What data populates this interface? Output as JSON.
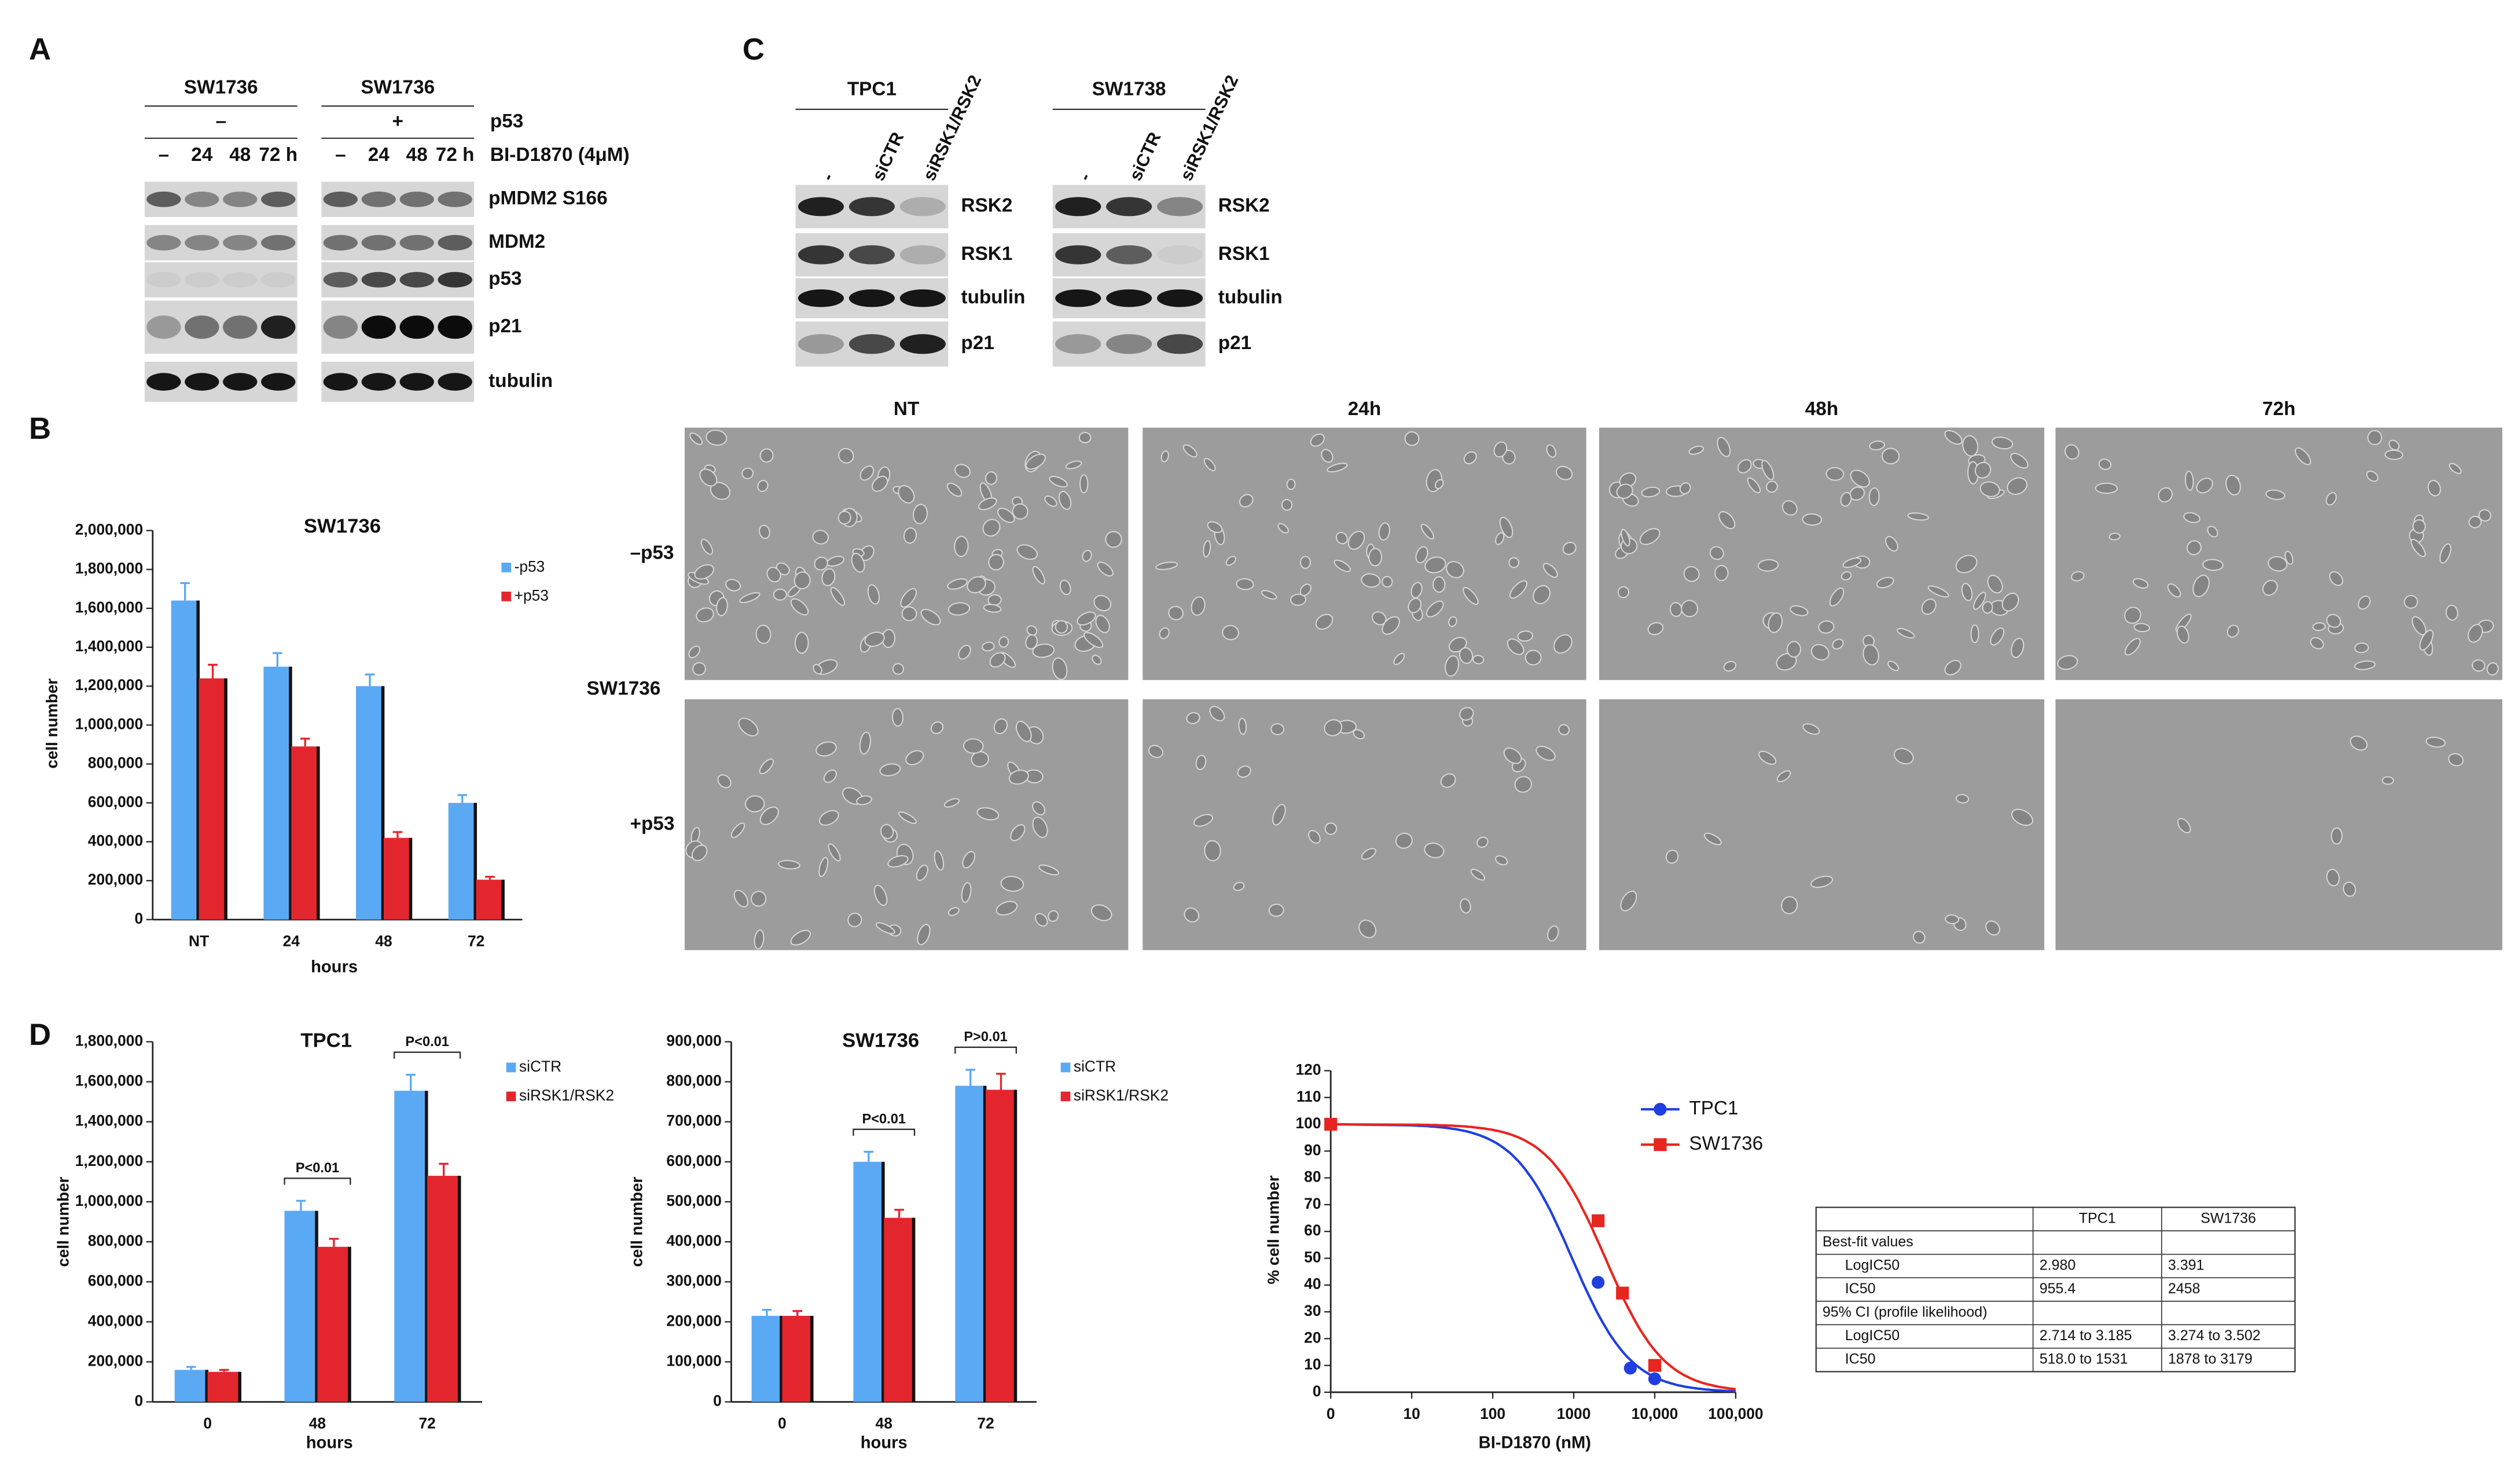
{
  "panel_labels": [
    "A",
    "B",
    "C",
    "D"
  ],
  "blot_a": {
    "cell_lines": [
      "SW1736",
      "SW1736"
    ],
    "p53_states": [
      "–",
      "+"
    ],
    "p53_label": "p53",
    "time_labels": [
      "–",
      "24",
      "48",
      "72 h"
    ],
    "treatment": "BI-D1870 (4μM)",
    "proteins": [
      "pMDM2 S166",
      "MDM2",
      "p53",
      "p21",
      "tubulin"
    ]
  },
  "blot_c": {
    "cell_lines": [
      "TPC1",
      "SW1738"
    ],
    "lanes": [
      "-",
      "siCTR",
      "siRSK1/RSK2"
    ],
    "proteins": [
      "RSK2",
      "RSK1",
      "tubulin",
      "p21"
    ]
  },
  "micrographs": {
    "columns": [
      "NT",
      "24h",
      "48h",
      "72h"
    ],
    "rows": [
      "–p53",
      "+p53"
    ],
    "cell_line": "SW1736"
  },
  "chart_data": [
    {
      "type": "bar",
      "title": "SW1736",
      "x_label": "hours",
      "y_label": "cell number",
      "categories": [
        "NT",
        "24",
        "48",
        "72"
      ],
      "series": [
        {
          "name": "-p53",
          "color": "#5aa9f4",
          "values": [
            1640000,
            1300000,
            1200000,
            600000
          ],
          "errors": [
            90000,
            70000,
            60000,
            40000
          ]
        },
        {
          "name": "+p53",
          "color": "#e3262d",
          "values": [
            1240000,
            890000,
            420000,
            205000
          ],
          "errors": [
            70000,
            40000,
            30000,
            15000
          ]
        }
      ],
      "ylim": [
        0,
        2000000
      ],
      "yticks": [
        0,
        {
          "value": 200000,
          "label": "200,000"
        },
        {
          "value": 400000,
          "label": "400,000"
        },
        {
          "value": 600000,
          "label": "600,000"
        },
        {
          "value": 800000,
          "label": "800,000"
        },
        {
          "value": 1000000,
          "label": "1,000,000"
        },
        {
          "value": 1200000,
          "label": "1,200,000"
        },
        {
          "value": 1400000,
          "label": "1,400,000"
        },
        {
          "value": 1600000,
          "label": "1,600,000"
        },
        {
          "value": 1800000,
          "label": "1,800,000"
        },
        {
          "value": 2000000,
          "label": "2,000,000"
        }
      ]
    },
    {
      "type": "bar",
      "title": "TPC1",
      "x_label": "hours",
      "y_label": "cell number",
      "categories": [
        "0",
        "48",
        "72"
      ],
      "series": [
        {
          "name": "siCTR",
          "color": "#5aa9f4",
          "values": [
            160000,
            955000,
            1555000
          ],
          "errors": [
            15000,
            50000,
            80000
          ]
        },
        {
          "name": "siRSK1/RSK2",
          "color": "#e3262d",
          "values": [
            150000,
            775000,
            1130000
          ],
          "errors": [
            10000,
            40000,
            60000
          ]
        }
      ],
      "annotations": [
        null,
        "P<0.01",
        "P<0.01"
      ],
      "ylim": [
        0,
        1800000
      ],
      "yticks": [
        0,
        {
          "value": 200000,
          "label": "200,000"
        },
        {
          "value": 400000,
          "label": "400,000"
        },
        {
          "value": 600000,
          "label": "600,000"
        },
        {
          "value": 800000,
          "label": "800,000"
        },
        {
          "value": 1000000,
          "label": "1,000,000"
        },
        {
          "value": 1200000,
          "label": "1,200,000"
        },
        {
          "value": 1400000,
          "label": "1,400,000"
        },
        {
          "value": 1600000,
          "label": "1,600,000"
        },
        {
          "value": 1800000,
          "label": "1,800,000"
        }
      ]
    },
    {
      "type": "bar",
      "title": "SW1736",
      "x_label": "hours",
      "y_label": "cell number",
      "categories": [
        "0",
        "48",
        "72"
      ],
      "series": [
        {
          "name": "siCTR",
          "color": "#5aa9f4",
          "values": [
            215000,
            600000,
            790000
          ],
          "errors": [
            15000,
            25000,
            40000
          ]
        },
        {
          "name": "siRSK1/RSK2",
          "color": "#e3262d",
          "values": [
            215000,
            460000,
            780000
          ],
          "errors": [
            12000,
            20000,
            40000
          ]
        }
      ],
      "annotations": [
        null,
        "P<0.01",
        "P>0.01"
      ],
      "ylim": [
        0,
        900000
      ],
      "yticks": [
        0,
        {
          "value": 100000,
          "label": "100,000"
        },
        {
          "value": 200000,
          "label": "200,000"
        },
        {
          "value": 300000,
          "label": "300,000"
        },
        {
          "value": 400000,
          "label": "400,000"
        },
        {
          "value": 500000,
          "label": "500,000"
        },
        {
          "value": 600000,
          "label": "600,000"
        },
        {
          "value": 700000,
          "label": "700,000"
        },
        {
          "value": 800000,
          "label": "800,000"
        },
        {
          "value": 900000,
          "label": "900,000"
        }
      ]
    },
    {
      "type": "scatter",
      "x_label": "BI-D1870 (nM)",
      "y_label": "% cell number",
      "xscale": "log",
      "series": [
        {
          "name": "TPC1",
          "color": "#1f3fe0",
          "marker": "circle",
          "x": [
            0,
            2000,
            5000,
            10000
          ],
          "values": [
            100,
            41,
            9,
            5
          ]
        },
        {
          "name": "SW1736",
          "color": "#e8251f",
          "marker": "square",
          "x": [
            0,
            2000,
            4000,
            10000
          ],
          "values": [
            100,
            64,
            37,
            10
          ]
        }
      ],
      "xlim": [
        0,
        100000
      ],
      "xticks": [
        0,
        10,
        100,
        1000,
        {
          "value": 10000,
          "label": "10,000"
        },
        {
          "value": 100000,
          "label": "100,000"
        }
      ],
      "ylim": [
        0,
        120
      ],
      "yticks": [
        0,
        10,
        20,
        30,
        40,
        50,
        60,
        70,
        80,
        90,
        100,
        110,
        120
      ]
    }
  ],
  "table": {
    "header": [
      "TPC1",
      "SW1736"
    ],
    "rows": [
      [
        "Best-fit values"
      ],
      [
        "LogIC50",
        "2.980",
        "3.391"
      ],
      [
        "IC50",
        "955.4",
        "2458"
      ],
      [
        "95% CI (profile likelihood)"
      ],
      [
        "LogIC50",
        "2.714 to 3.185",
        "3.274 to 3.502"
      ],
      [
        "IC50",
        "518.0 to 1531",
        "1878 to 3179"
      ]
    ]
  }
}
